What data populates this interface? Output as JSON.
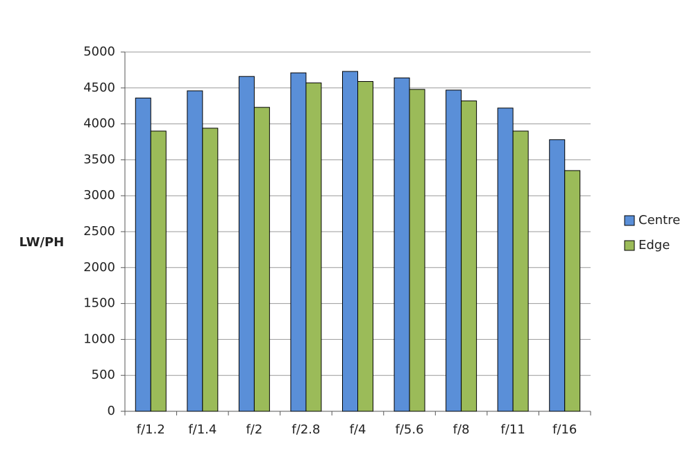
{
  "chart_data": {
    "type": "bar",
    "y_label": "LW/PH",
    "categories": [
      "f/1.2",
      "f/1.4",
      "f/2",
      "f/2.8",
      "f/4",
      "f/5.6",
      "f/8",
      "f/11",
      "f/16"
    ],
    "series": [
      {
        "name": "Centre",
        "color": "#5a8fd8",
        "values": [
          4360,
          4460,
          4660,
          4710,
          4730,
          4640,
          4470,
          4220,
          3780
        ]
      },
      {
        "name": "Edge",
        "color": "#9bbb59",
        "values": [
          3900,
          3940,
          4230,
          4570,
          4590,
          4480,
          4320,
          3900,
          3350
        ]
      }
    ],
    "ylim": [
      0,
      5000
    ],
    "yticks": [
      0,
      500,
      1000,
      1500,
      2000,
      2500,
      3000,
      3500,
      4000,
      4500,
      5000
    ],
    "grid": true,
    "legend": "right"
  }
}
